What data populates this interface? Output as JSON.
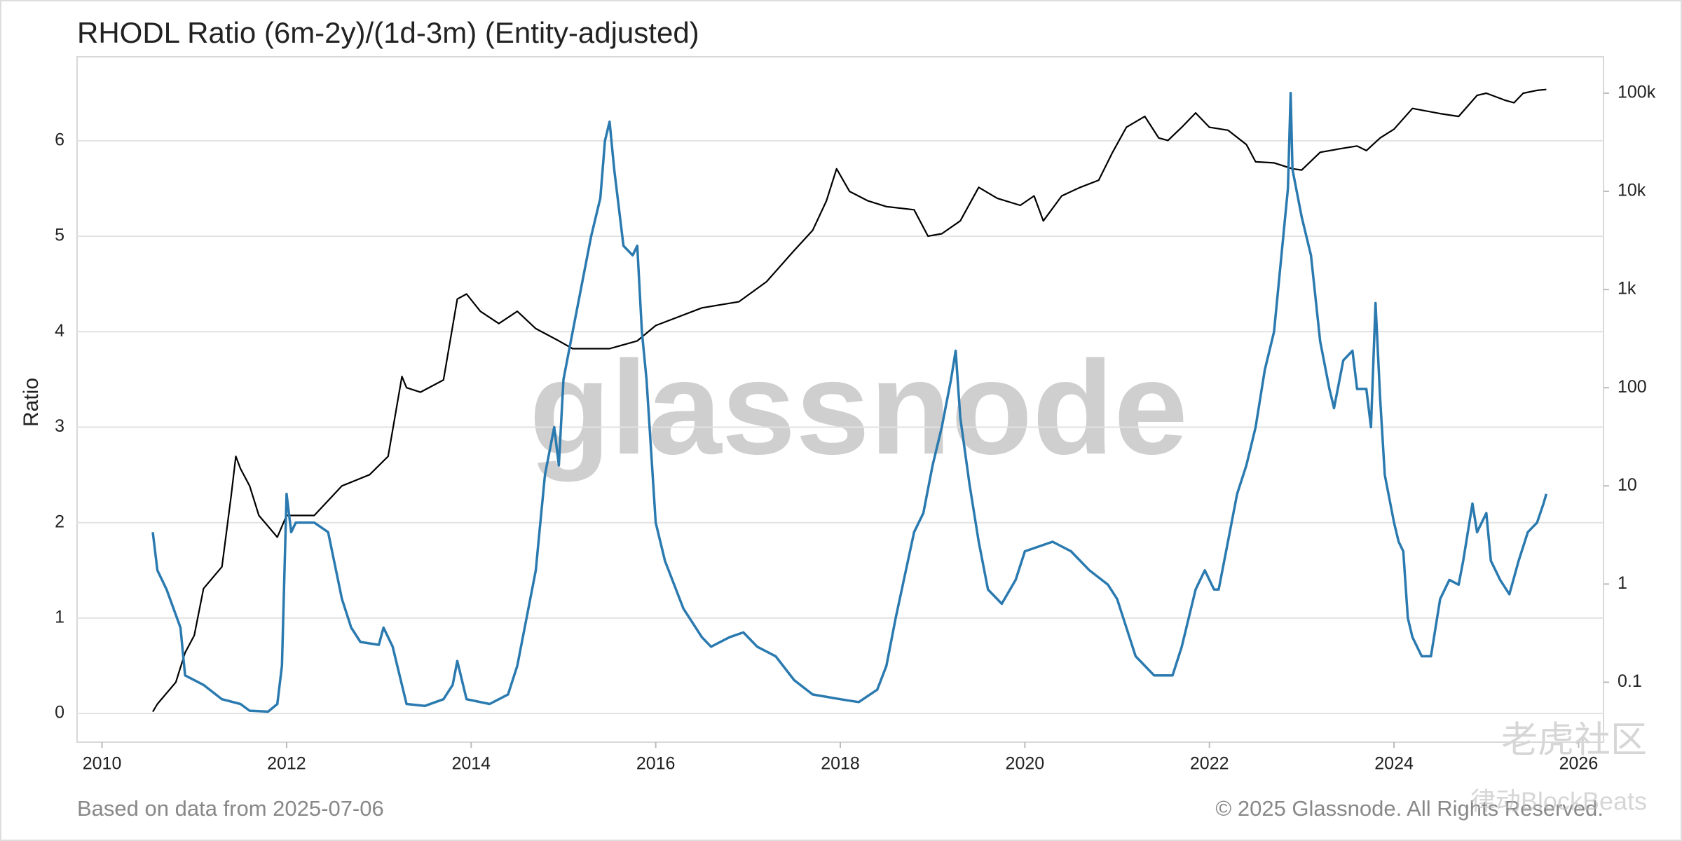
{
  "chart_data": {
    "type": "line",
    "title": "RHODL Ratio (6m-2y)/(1d-3m) (Entity-adjusted)",
    "y_label": "Ratio",
    "source_note": "Based on data from 2025-07-06",
    "copyright": "© 2025 Glassnode. All Rights Reserved.",
    "watermark": "glassnode",
    "overlay_marks": [
      "老虎社区",
      "律动BlockBeats"
    ],
    "xlim": [
      2009.73,
      2026.27
    ],
    "xticks": [
      2010,
      2012,
      2014,
      2016,
      2018,
      2020,
      2022,
      2024,
      2026
    ],
    "ylim": [
      -0.3,
      6.88
    ],
    "yticks": [
      0,
      1,
      2,
      3,
      4,
      5,
      6
    ],
    "y2lim": [
      0.0245,
      235000
    ],
    "y2scale": "log",
    "y2ticks": [
      0.1,
      1,
      10,
      100,
      {
        "value": 1000,
        "label": "1k"
      },
      {
        "value": 10000,
        "label": "10k"
      },
      {
        "value": 100000,
        "label": "100k"
      }
    ],
    "grid": true,
    "series": [
      {
        "color": "#2a7ab0",
        "x": [
          2010.55,
          2010.6,
          2010.7,
          2010.85,
          2010.9,
          2011.1,
          2011.3,
          2011.5,
          2011.6,
          2011.8,
          2011.9,
          2011.95,
          2012.0,
          2012.05,
          2012.1,
          2012.3,
          2012.45,
          2012.6,
          2012.7,
          2012.8,
          2013.0,
          2013.05,
          2013.15,
          2013.3,
          2013.5,
          2013.7,
          2013.8,
          2013.85,
          2013.95,
          2014.2,
          2014.4,
          2014.5,
          2014.6,
          2014.7,
          2014.75,
          2014.8,
          2014.9,
          2014.95,
          2015.0,
          2015.1,
          2015.2,
          2015.3,
          2015.4,
          2015.45,
          2015.5,
          2015.55,
          2015.6,
          2015.65,
          2015.75,
          2015.8,
          2015.85,
          2015.9,
          2016.0,
          2016.1,
          2016.3,
          2016.5,
          2016.6,
          2016.8,
          2016.95,
          2017.1,
          2017.3,
          2017.5,
          2017.7,
          2018.0,
          2018.2,
          2018.4,
          2018.5,
          2018.6,
          2018.8,
          2018.9,
          2019.0,
          2019.1,
          2019.2,
          2019.25,
          2019.3,
          2019.4,
          2019.5,
          2019.6,
          2019.75,
          2019.9,
          2020.0,
          2020.3,
          2020.5,
          2020.7,
          2020.9,
          2021.0,
          2021.1,
          2021.2,
          2021.4,
          2021.6,
          2021.7,
          2021.85,
          2021.95,
          2022.05,
          2022.1,
          2022.2,
          2022.3,
          2022.4,
          2022.5,
          2022.6,
          2022.7,
          2022.8,
          2022.85,
          2022.88,
          2022.9,
          2023.0,
          2023.1,
          2023.2,
          2023.3,
          2023.35,
          2023.45,
          2023.55,
          2023.6,
          2023.7,
          2023.75,
          2023.8,
          2023.85,
          2023.9,
          2024.0,
          2024.05,
          2024.1,
          2024.15,
          2024.2,
          2024.3,
          2024.4,
          2024.5,
          2024.6,
          2024.7,
          2024.75,
          2024.85,
          2024.9,
          2025.0,
          2025.05,
          2025.15,
          2025.25,
          2025.35,
          2025.45,
          2025.55,
          2025.62,
          2025.65
        ],
        "values": [
          1.9,
          1.5,
          1.3,
          0.9,
          0.4,
          0.3,
          0.15,
          0.1,
          0.03,
          0.02,
          0.1,
          0.5,
          2.3,
          1.9,
          2.0,
          2.0,
          1.9,
          1.2,
          0.9,
          0.75,
          0.72,
          0.9,
          0.7,
          0.1,
          0.08,
          0.15,
          0.3,
          0.55,
          0.15,
          0.1,
          0.2,
          0.5,
          1.0,
          1.5,
          2.0,
          2.5,
          3.0,
          2.6,
          3.5,
          4.0,
          4.5,
          5.0,
          5.4,
          6.0,
          6.2,
          5.7,
          5.3,
          4.9,
          4.8,
          4.9,
          4.0,
          3.5,
          2.0,
          1.6,
          1.1,
          0.8,
          0.7,
          0.8,
          0.85,
          0.7,
          0.6,
          0.35,
          0.2,
          0.15,
          0.12,
          0.25,
          0.5,
          1.0,
          1.9,
          2.1,
          2.6,
          3.0,
          3.5,
          3.8,
          3.1,
          2.4,
          1.8,
          1.3,
          1.15,
          1.4,
          1.7,
          1.8,
          1.7,
          1.5,
          1.35,
          1.2,
          0.9,
          0.6,
          0.4,
          0.4,
          0.7,
          1.3,
          1.5,
          1.3,
          1.3,
          1.8,
          2.3,
          2.6,
          3.0,
          3.6,
          4.0,
          5.0,
          5.5,
          6.5,
          5.7,
          5.2,
          4.8,
          3.9,
          3.4,
          3.2,
          3.7,
          3.8,
          3.4,
          3.4,
          3.0,
          4.3,
          3.3,
          2.5,
          2.0,
          1.8,
          1.7,
          1.0,
          0.8,
          0.6,
          0.6,
          1.2,
          1.4,
          1.35,
          1.6,
          2.2,
          1.9,
          2.1,
          1.6,
          1.4,
          1.25,
          1.6,
          1.9,
          2.0,
          2.2,
          2.3
        ]
      },
      {
        "color": "#000000",
        "axis": "y2",
        "x": [
          2010.55,
          2010.6,
          2010.8,
          2010.9,
          2011.0,
          2011.1,
          2011.3,
          2011.4,
          2011.45,
          2011.5,
          2011.6,
          2011.7,
          2011.9,
          2012.0,
          2012.3,
          2012.6,
          2012.9,
          2013.1,
          2013.25,
          2013.3,
          2013.45,
          2013.7,
          2013.85,
          2013.95,
          2014.1,
          2014.3,
          2014.5,
          2014.7,
          2014.95,
          2015.1,
          2015.5,
          2015.8,
          2016.0,
          2016.5,
          2016.9,
          2017.2,
          2017.5,
          2017.7,
          2017.85,
          2017.96,
          2018.1,
          2018.3,
          2018.5,
          2018.8,
          2018.95,
          2019.1,
          2019.3,
          2019.5,
          2019.7,
          2019.95,
          2020.1,
          2020.2,
          2020.4,
          2020.6,
          2020.8,
          2020.95,
          2021.1,
          2021.3,
          2021.45,
          2021.55,
          2021.7,
          2021.85,
          2022.0,
          2022.2,
          2022.4,
          2022.5,
          2022.7,
          2022.9,
          2023.0,
          2023.2,
          2023.4,
          2023.6,
          2023.7,
          2023.85,
          2024.0,
          2024.2,
          2024.5,
          2024.7,
          2024.9,
          2025.0,
          2025.2,
          2025.3,
          2025.4,
          2025.55,
          2025.65
        ],
        "values": [
          0.05,
          0.06,
          0.1,
          0.2,
          0.3,
          0.9,
          1.5,
          8,
          20,
          15,
          10,
          5,
          3,
          5,
          5,
          10,
          13,
          20,
          130,
          100,
          90,
          120,
          800,
          900,
          600,
          450,
          600,
          400,
          300,
          250,
          250,
          300,
          430,
          650,
          750,
          1200,
          2500,
          4000,
          8000,
          17000,
          10000,
          8000,
          7000,
          6500,
          3500,
          3700,
          5000,
          11000,
          8500,
          7200,
          9000,
          5000,
          9000,
          11000,
          13000,
          25000,
          45000,
          58000,
          35000,
          33000,
          45000,
          63000,
          45000,
          42000,
          30000,
          20000,
          19500,
          17000,
          16500,
          25000,
          27000,
          29000,
          26000,
          35000,
          43000,
          70000,
          62000,
          58000,
          95000,
          100000,
          85000,
          80000,
          100000,
          107000,
          109000
        ]
      }
    ]
  }
}
